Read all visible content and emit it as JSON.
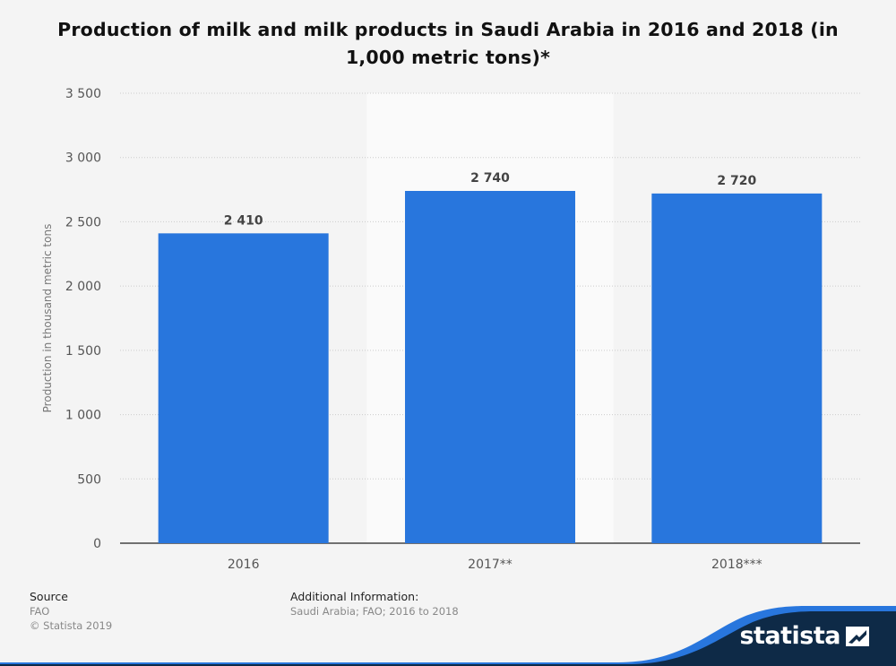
{
  "chart_data": {
    "type": "bar",
    "title": "Production of milk and milk products in Saudi Arabia in 2016 and 2018 (in 1,000 metric tons)*",
    "ylabel": "Production in thousand metric tons",
    "xlabel": "",
    "categories": [
      "2016",
      "2017**",
      "2018***"
    ],
    "values": [
      2410,
      2740,
      2720
    ],
    "value_labels": [
      "2 410",
      "2 740",
      "2 720"
    ],
    "highlighted_category_index": 1,
    "ylim": [
      0,
      3500
    ],
    "yticks": [
      0,
      500,
      1000,
      1500,
      2000,
      2500,
      3000,
      3500
    ],
    "ytick_labels": [
      "0",
      "500",
      "1 000",
      "1 500",
      "2 000",
      "2 500",
      "3 000",
      "3 500"
    ],
    "grid": true,
    "bar_color": "#2876dd"
  },
  "footer": {
    "source_heading": "Source",
    "source_name": "FAO",
    "copyright": "© Statista 2019",
    "info_heading": "Additional Information:",
    "info_text": "Saudi Arabia; FAO; 2016 to 2018"
  },
  "brand": {
    "name": "statista",
    "logo_icon": "statista-logo-icon",
    "dark_color": "#0e2a47",
    "accent_color": "#2876dd"
  }
}
